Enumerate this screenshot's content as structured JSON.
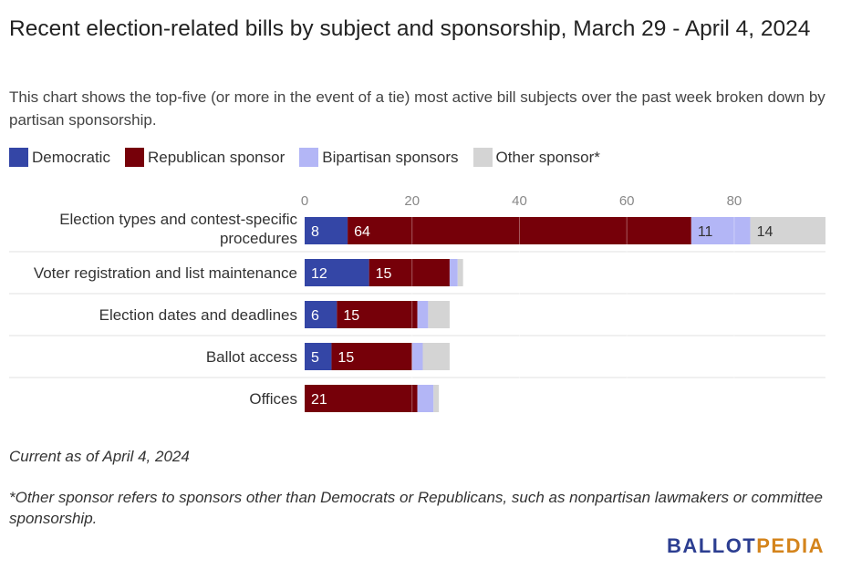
{
  "title": "Recent election-related bills by subject and sponsorship, March 29 - April 4, 2024",
  "subtitle": "This chart shows the top-five (or more in the event of a tie) most active bill subjects over the past week broken down by partisan sponsorship.",
  "as_of": "Current as of April 4, 2024",
  "footnote": "*Other sponsor refers to sponsors other than Democrats or Republicans, such as nonpartisan lawmakers or committee sponsorship.",
  "logo": {
    "part1": "BALLOT",
    "part2": "PEDIA"
  },
  "colors": {
    "democratic": "#3446a6",
    "republican": "#760009",
    "bipartisan": "#b3b6f6",
    "other": "#d4d4d4",
    "logo_blue": "#2c3e91",
    "logo_orange": "#d4841c"
  },
  "chart_data": {
    "type": "bar",
    "orientation": "horizontal",
    "stacked": true,
    "categories": [
      "Election types and contest-specific procedures",
      "Voter registration and list maintenance",
      "Election dates and deadlines",
      "Ballot access",
      "Offices"
    ],
    "series": [
      {
        "name": "Democratic",
        "values": [
          8,
          12,
          6,
          5,
          0
        ],
        "labels": [
          "8",
          "12",
          "6",
          "5",
          ""
        ]
      },
      {
        "name": "Republican sponsor",
        "values": [
          64,
          15,
          15,
          15,
          21
        ],
        "labels": [
          "64",
          "15",
          "15",
          "15",
          "21"
        ]
      },
      {
        "name": "Bipartisan sponsors",
        "values": [
          11,
          1.5,
          2,
          2,
          3
        ],
        "labels": [
          "11",
          "",
          "",
          "",
          ""
        ]
      },
      {
        "name": "Other sponsor*",
        "values": [
          14,
          1,
          4,
          5,
          1
        ],
        "labels": [
          "14",
          "",
          "",
          "",
          ""
        ]
      }
    ],
    "xticks": [
      0,
      20,
      40,
      60,
      80
    ],
    "xlim": [
      0,
      97
    ],
    "grid": true,
    "legend_position": "top-left"
  }
}
